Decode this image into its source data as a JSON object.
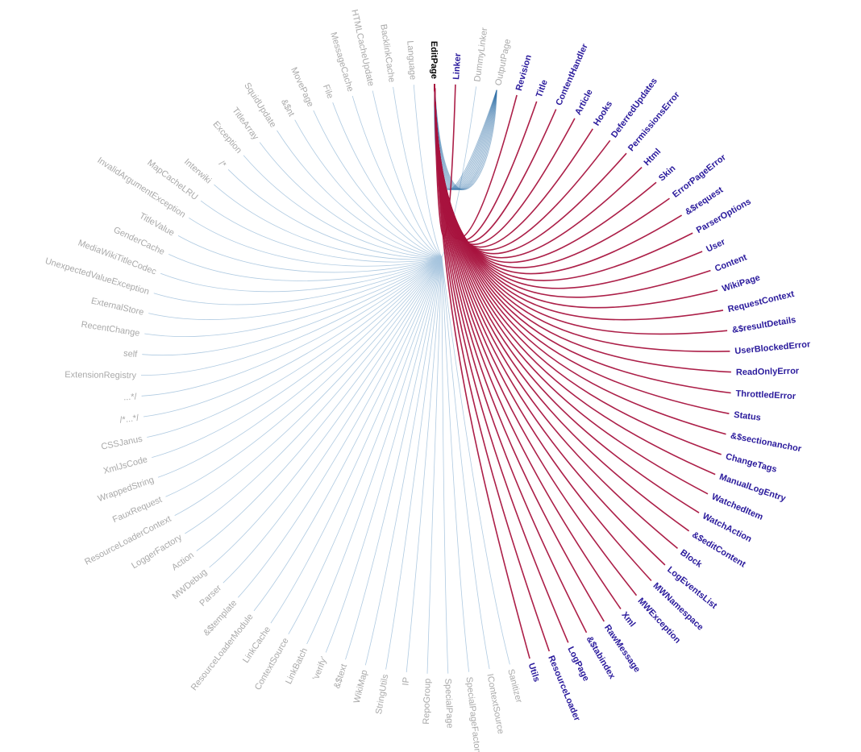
{
  "diagram": {
    "type": "hierarchical-edge-bundling",
    "focus_node": "EditPage",
    "colors": {
      "focus": "#000000",
      "target_label": "#2a1a9c",
      "other_label": "#a9a9a9",
      "outgoing_edge": "#a8133e",
      "incoming_edge": "#2e6ea6",
      "background_edge": "#a6c4de"
    },
    "nodes": [
      {
        "name": "EditPage",
        "role": "focus"
      },
      {
        "name": "Linker",
        "role": "target"
      },
      {
        "name": "DummyLinker",
        "role": "other"
      },
      {
        "name": "OutputPage",
        "role": "source"
      },
      {
        "name": "Revision",
        "role": "target"
      },
      {
        "name": "Title",
        "role": "target"
      },
      {
        "name": "ContentHandler",
        "role": "target"
      },
      {
        "name": "Article",
        "role": "target"
      },
      {
        "name": "Hooks",
        "role": "target"
      },
      {
        "name": "DeferredUpdates",
        "role": "target"
      },
      {
        "name": "PermissionsError",
        "role": "target"
      },
      {
        "name": "Html",
        "role": "target"
      },
      {
        "name": "Skin",
        "role": "target"
      },
      {
        "name": "ErrorPageError",
        "role": "target"
      },
      {
        "name": "&$request",
        "role": "target"
      },
      {
        "name": "ParserOptions",
        "role": "target"
      },
      {
        "name": "User",
        "role": "target"
      },
      {
        "name": "Content",
        "role": "target"
      },
      {
        "name": "WikiPage",
        "role": "target"
      },
      {
        "name": "RequestContext",
        "role": "target"
      },
      {
        "name": "&$resultDetails",
        "role": "target"
      },
      {
        "name": "UserBlockedError",
        "role": "target"
      },
      {
        "name": "ReadOnlyError",
        "role": "target"
      },
      {
        "name": "ThrottledError",
        "role": "target"
      },
      {
        "name": "Status",
        "role": "target"
      },
      {
        "name": "&$sectionanchor",
        "role": "target"
      },
      {
        "name": "ChangeTags",
        "role": "target"
      },
      {
        "name": "ManualLogEntry",
        "role": "target"
      },
      {
        "name": "WatchedItem",
        "role": "target"
      },
      {
        "name": "WatchAction",
        "role": "target"
      },
      {
        "name": "&$editContent",
        "role": "target"
      },
      {
        "name": "Block",
        "role": "target"
      },
      {
        "name": "LogEventsList",
        "role": "target"
      },
      {
        "name": "MWNamespace",
        "role": "target"
      },
      {
        "name": "MWException",
        "role": "target"
      },
      {
        "name": "Xml",
        "role": "target"
      },
      {
        "name": "RawMessage",
        "role": "target"
      },
      {
        "name": "&$tabindex",
        "role": "target"
      },
      {
        "name": "LogPage",
        "role": "target"
      },
      {
        "name": "ResourceLoader",
        "role": "target"
      },
      {
        "name": "Utils",
        "role": "target"
      },
      {
        "name": "Sanitizer",
        "role": "other"
      },
      {
        "name": "IContextSource",
        "role": "other"
      },
      {
        "name": "SpecialPageFactory",
        "role": "other"
      },
      {
        "name": "SpecialPage",
        "role": "other"
      },
      {
        "name": "RepoGroup",
        "role": "other"
      },
      {
        "name": "IP",
        "role": "other"
      },
      {
        "name": "StringUtils",
        "role": "other"
      },
      {
        "name": "WikiMap",
        "role": "other"
      },
      {
        "name": "&$text",
        "role": "other"
      },
      {
        "name": "'verify'",
        "role": "other"
      },
      {
        "name": "LinkBatch",
        "role": "other"
      },
      {
        "name": "ContextSource",
        "role": "other"
      },
      {
        "name": "LinkCache",
        "role": "other"
      },
      {
        "name": "ResourceLoaderModule",
        "role": "other"
      },
      {
        "name": "&$template",
        "role": "other"
      },
      {
        "name": "Parser",
        "role": "other"
      },
      {
        "name": "MWDebug",
        "role": "other"
      },
      {
        "name": "Action",
        "role": "other"
      },
      {
        "name": "LoggerFactory",
        "role": "other"
      },
      {
        "name": "ResourceLoaderContext",
        "role": "other"
      },
      {
        "name": "FauxRequest",
        "role": "other"
      },
      {
        "name": "WrappedString",
        "role": "other"
      },
      {
        "name": "XmlJsCode",
        "role": "other"
      },
      {
        "name": "CSSJanus",
        "role": "other"
      },
      {
        "name": "/*...*/",
        "role": "other"
      },
      {
        "name": "...*/",
        "role": "other"
      },
      {
        "name": "ExtensionRegistry",
        "role": "other"
      },
      {
        "name": "self",
        "role": "other"
      },
      {
        "name": "RecentChange",
        "role": "other"
      },
      {
        "name": "ExternalStore",
        "role": "other"
      },
      {
        "name": "UnexpectedValueException",
        "role": "other"
      },
      {
        "name": "MediaWikiTitleCodec",
        "role": "other"
      },
      {
        "name": "GenderCache",
        "role": "other"
      },
      {
        "name": "TitleValue",
        "role": "other"
      },
      {
        "name": "InvalidArgumentException",
        "role": "other"
      },
      {
        "name": "MapCacheLRU",
        "role": "other"
      },
      {
        "name": "Interwiki",
        "role": "other"
      },
      {
        "name": "/*",
        "role": "other"
      },
      {
        "name": "Exception",
        "role": "other"
      },
      {
        "name": "TitleArray",
        "role": "other"
      },
      {
        "name": "SquidUpdate",
        "role": "other"
      },
      {
        "name": "&$nt",
        "role": "other"
      },
      {
        "name": "MovePage",
        "role": "other"
      },
      {
        "name": "File",
        "role": "other"
      },
      {
        "name": "MessageCache",
        "role": "other"
      },
      {
        "name": "HTMLCacheUpdate",
        "role": "other"
      },
      {
        "name": "BacklinkCache",
        "role": "other"
      },
      {
        "name": "Language",
        "role": "other"
      }
    ]
  }
}
